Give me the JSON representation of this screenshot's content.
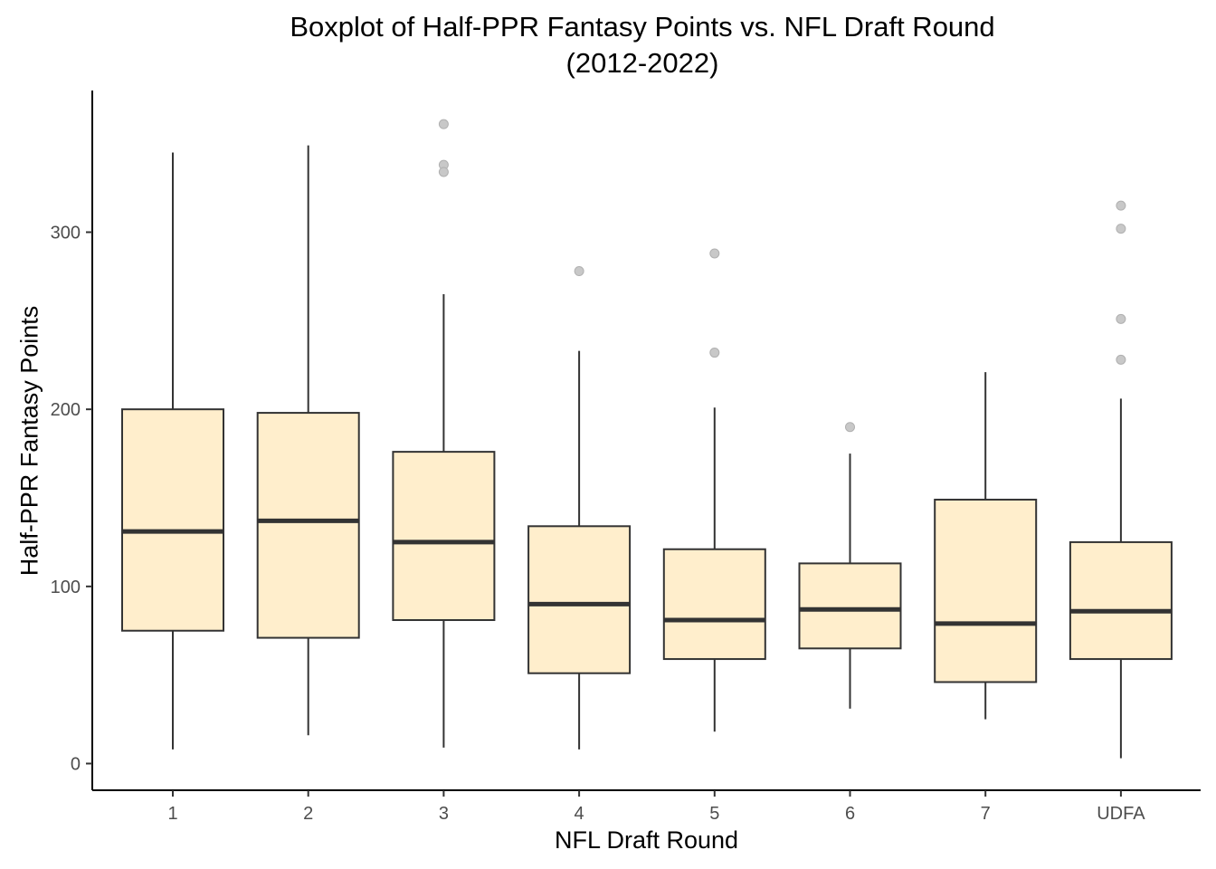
{
  "chart_data": {
    "type": "boxplot",
    "title": "Boxplot of Half-PPR Fantasy Points vs. NFL Draft Round",
    "subtitle": "(2012-2022)",
    "xlabel": "NFL Draft Round",
    "ylabel": "Half-PPR Fantasy Points",
    "categories": [
      "1",
      "2",
      "3",
      "4",
      "5",
      "6",
      "7",
      "UDFA"
    ],
    "yticks": [
      0,
      100,
      200,
      300
    ],
    "ylim": [
      -15,
      380
    ],
    "grid": false,
    "colors": {
      "box_fill": "#ffeecc",
      "box_stroke": "#333333",
      "outlier": "#c8c8c8",
      "axis": "#000000"
    },
    "boxes": [
      {
        "category": "1",
        "min": 8,
        "q1": 75,
        "median": 131,
        "q3": 200,
        "max": 345,
        "outliers": []
      },
      {
        "category": "2",
        "min": 16,
        "q1": 71,
        "median": 137,
        "q3": 198,
        "max": 349,
        "outliers": []
      },
      {
        "category": "3",
        "min": 9,
        "q1": 81,
        "median": 125,
        "q3": 176,
        "max": 265,
        "outliers": [
          361,
          338,
          334
        ]
      },
      {
        "category": "4",
        "min": 8,
        "q1": 51,
        "median": 90,
        "q3": 134,
        "max": 233,
        "outliers": [
          278
        ]
      },
      {
        "category": "5",
        "min": 18,
        "q1": 59,
        "median": 81,
        "q3": 121,
        "max": 201,
        "outliers": [
          288,
          232
        ]
      },
      {
        "category": "6",
        "min": 31,
        "q1": 65,
        "median": 87,
        "q3": 113,
        "max": 175,
        "outliers": [
          190
        ]
      },
      {
        "category": "7",
        "min": 25,
        "q1": 46,
        "median": 79,
        "q3": 149,
        "max": 221,
        "outliers": []
      },
      {
        "category": "UDFA",
        "min": 3,
        "q1": 59,
        "median": 86,
        "q3": 125,
        "max": 206,
        "outliers": [
          315,
          302,
          251,
          228
        ]
      }
    ]
  }
}
